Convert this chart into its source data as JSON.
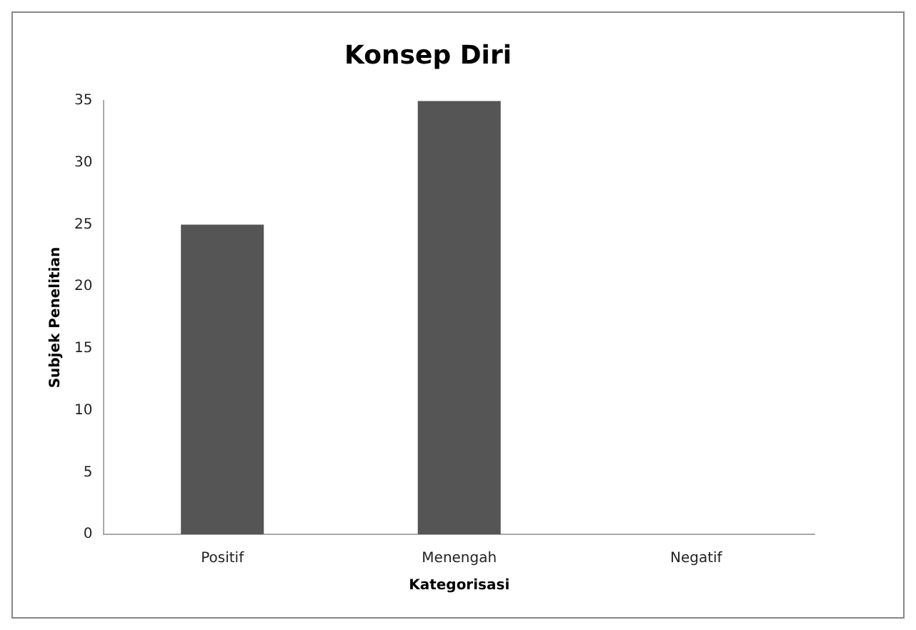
{
  "chart_data": {
    "type": "bar",
    "title": "Konsep Diri",
    "xlabel": "Kategorisasi",
    "ylabel": "Subjek Penelitian",
    "categories": [
      "Positif",
      "Menengah",
      "Negatif"
    ],
    "values": [
      25,
      35,
      0
    ],
    "color": "#555555",
    "ylim": [
      0,
      35
    ],
    "yticks": [
      0,
      5,
      10,
      15,
      20,
      25,
      30,
      35
    ],
    "grid": false,
    "legend": false
  }
}
